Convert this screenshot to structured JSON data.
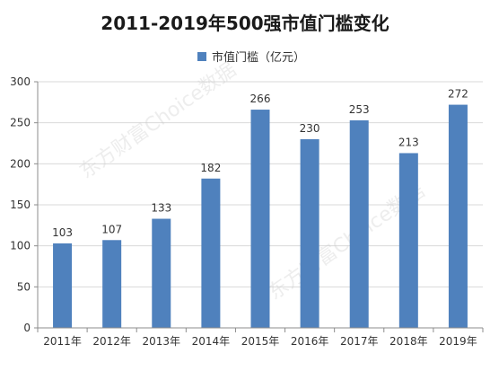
{
  "colors": {
    "bar": "#4f81bd",
    "grid": "#d9d9d9",
    "axis": "#8c8c8c"
  },
  "watermarks": [
    "东方财富Choice数据",
    "东方财富Choice数据"
  ],
  "chart_data": {
    "type": "bar",
    "title": "2011-2019年500强市值门槛变化",
    "legend": {
      "placement": "top",
      "entries": [
        "市值门槛（亿元）"
      ]
    },
    "categories": [
      "2011年",
      "2012年",
      "2013年",
      "2014年",
      "2015年",
      "2016年",
      "2017年",
      "2018年",
      "2019年"
    ],
    "series": [
      {
        "name": "市值门槛（亿元）",
        "values": [
          103,
          107,
          133,
          182,
          266,
          230,
          253,
          213,
          272
        ]
      }
    ],
    "data_labels": [
      "103",
      "107",
      "133",
      "182",
      "266",
      "230",
      "253",
      "213",
      "272"
    ],
    "ylim": [
      0,
      300
    ],
    "yticks": [
      0,
      50,
      100,
      150,
      200,
      250,
      300
    ],
    "grid": true,
    "xlabel": "",
    "ylabel": ""
  }
}
